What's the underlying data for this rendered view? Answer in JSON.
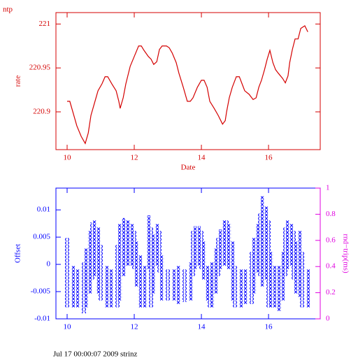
{
  "chart_data": [
    {
      "type": "line",
      "title": "ntp",
      "xlabel": "Date",
      "ylabel": "rate",
      "color": "#d40000",
      "xlim": [
        9.667,
        17.54
      ],
      "xticks": [
        10,
        12,
        14,
        16
      ],
      "ylim": [
        220.857,
        221.013
      ],
      "yticks": [
        220.9,
        220.95,
        221
      ],
      "x": [
        10.0,
        10.08,
        10.17,
        10.29,
        10.42,
        10.54,
        10.63,
        10.71,
        10.83,
        10.92,
        11.04,
        11.13,
        11.21,
        11.33,
        11.46,
        11.54,
        11.58,
        11.67,
        11.75,
        11.88,
        12.0,
        12.13,
        12.21,
        12.29,
        12.42,
        12.5,
        12.58,
        12.67,
        12.75,
        12.83,
        12.96,
        13.04,
        13.13,
        13.25,
        13.33,
        13.46,
        13.58,
        13.67,
        13.75,
        13.88,
        14.0,
        14.08,
        14.17,
        14.25,
        14.38,
        14.5,
        14.63,
        14.71,
        14.75,
        14.83,
        14.92,
        15.04,
        15.13,
        15.21,
        15.29,
        15.42,
        15.54,
        15.63,
        15.71,
        15.79,
        15.88,
        15.96,
        16.04,
        16.13,
        16.21,
        16.29,
        16.42,
        16.5,
        16.58,
        16.63,
        16.71,
        16.79,
        16.88,
        16.96,
        17.08,
        17.17
      ],
      "y": [
        220.912,
        220.912,
        220.9,
        220.884,
        220.872,
        220.864,
        220.876,
        220.896,
        220.912,
        220.924,
        220.932,
        220.94,
        220.94,
        220.932,
        220.924,
        220.912,
        220.904,
        220.916,
        220.932,
        220.952,
        220.963,
        220.975,
        220.975,
        220.97,
        220.963,
        220.96,
        220.954,
        220.957,
        220.971,
        220.975,
        220.975,
        220.973,
        220.967,
        220.956,
        220.944,
        220.928,
        220.912,
        220.912,
        220.916,
        220.928,
        220.936,
        220.936,
        220.928,
        220.912,
        220.904,
        220.896,
        220.886,
        220.89,
        220.9,
        220.916,
        220.928,
        220.94,
        220.94,
        220.932,
        220.924,
        220.92,
        220.914,
        220.916,
        220.928,
        220.936,
        220.948,
        220.96,
        220.97,
        220.956,
        220.948,
        220.944,
        220.938,
        220.933,
        220.941,
        220.956,
        220.971,
        220.983,
        220.983,
        220.995,
        220.998,
        220.991
      ]
    },
    {
      "type": "range",
      "ylabel": "Offset",
      "y2label": "rnd−trip(ms)",
      "color": "#0000ff",
      "y2color": "#e000e0",
      "xlim": [
        9.667,
        17.54
      ],
      "xticks": [
        10,
        12,
        14,
        16
      ],
      "ylim": [
        -0.01,
        0.014
      ],
      "yticks": [
        -0.01,
        -0.005,
        0,
        0.005,
        0.01
      ],
      "y2lim": [
        0,
        1
      ],
      "y2ticks": [
        0,
        0.2,
        0.4,
        0.6,
        0.8,
        1
      ],
      "x": [
        10.0,
        10.17,
        10.33,
        10.5,
        10.58,
        10.67,
        10.75,
        10.83,
        10.92,
        11.0,
        11.17,
        11.33,
        11.5,
        11.58,
        11.67,
        11.75,
        11.83,
        11.92,
        12.0,
        12.08,
        12.17,
        12.33,
        12.42,
        12.5,
        12.58,
        12.67,
        12.75,
        12.83,
        13.0,
        13.17,
        13.33,
        13.5,
        13.67,
        13.75,
        13.83,
        13.92,
        14.0,
        14.08,
        14.17,
        14.25,
        14.33,
        14.42,
        14.5,
        14.58,
        14.67,
        14.75,
        14.83,
        14.92,
        15.0,
        15.17,
        15.33,
        15.5,
        15.58,
        15.67,
        15.75,
        15.83,
        15.92,
        16.0,
        16.08,
        16.17,
        16.33,
        16.42,
        16.5,
        16.58,
        16.67,
        16.75,
        16.83,
        16.92,
        17.0,
        17.17
      ],
      "high": [
        0.0049,
        -0.0003,
        -0.0009,
        0.0004,
        0.0029,
        0.0062,
        0.0077,
        0.0081,
        0.0068,
        0.0036,
        -0.0003,
        -0.0009,
        0.0036,
        0.0074,
        0.0085,
        0.0081,
        0.0081,
        0.0074,
        0.0062,
        0.0042,
        0.0017,
        -0.0003,
        0.009,
        0.0068,
        0.0055,
        0.0074,
        0.0062,
        0.0017,
        -0.0009,
        -0.0009,
        -0.0003,
        -0.0009,
        0.0004,
        0.0062,
        0.007,
        0.007,
        0.0062,
        0.0042,
        -0.0003,
        -0.0009,
        0.0004,
        0.0029,
        0.0049,
        0.0064,
        0.0081,
        0.0081,
        0.0074,
        0.0042,
        -0.0003,
        -0.0009,
        -0.0009,
        0.0023,
        0.0049,
        0.0074,
        0.0094,
        0.0125,
        0.0106,
        0.0081,
        0.0023,
        -0.0003,
        -0.0003,
        0.0023,
        0.0068,
        0.0081,
        0.0074,
        0.0062,
        0.0042,
        0.0062,
        0.0023,
        -0.0009
      ],
      "low": [
        -0.0079,
        -0.0079,
        -0.0079,
        -0.009,
        -0.0079,
        -0.0054,
        -0.0028,
        -0.0022,
        -0.0054,
        -0.0067,
        -0.0079,
        -0.0079,
        -0.0079,
        -0.0067,
        -0.0022,
        -0.0003,
        -0.0003,
        -0.0003,
        -0.0009,
        -0.0041,
        -0.0079,
        -0.0079,
        -0.0009,
        -0.0079,
        -0.0054,
        -0.0003,
        -0.0015,
        -0.0067,
        -0.0067,
        -0.0067,
        -0.0073,
        -0.0069,
        -0.0067,
        -0.0022,
        -0.0009,
        -0.0003,
        -0.0009,
        -0.0028,
        -0.0067,
        -0.0079,
        -0.0079,
        -0.0054,
        -0.0022,
        -0.0009,
        -0.0003,
        -0.0003,
        -0.0009,
        -0.0067,
        -0.0079,
        -0.0079,
        -0.0073,
        -0.0073,
        -0.0054,
        -0.0015,
        -0.0022,
        -0.0041,
        -0.0028,
        -0.0079,
        -0.0079,
        -0.0079,
        -0.0086,
        -0.0067,
        -0.0022,
        -0.0009,
        -0.0003,
        -0.0028,
        -0.0054,
        -0.006,
        -0.0079,
        -0.0079
      ]
    }
  ],
  "footer": "Jul 17 00:00:07 2009 strinz"
}
